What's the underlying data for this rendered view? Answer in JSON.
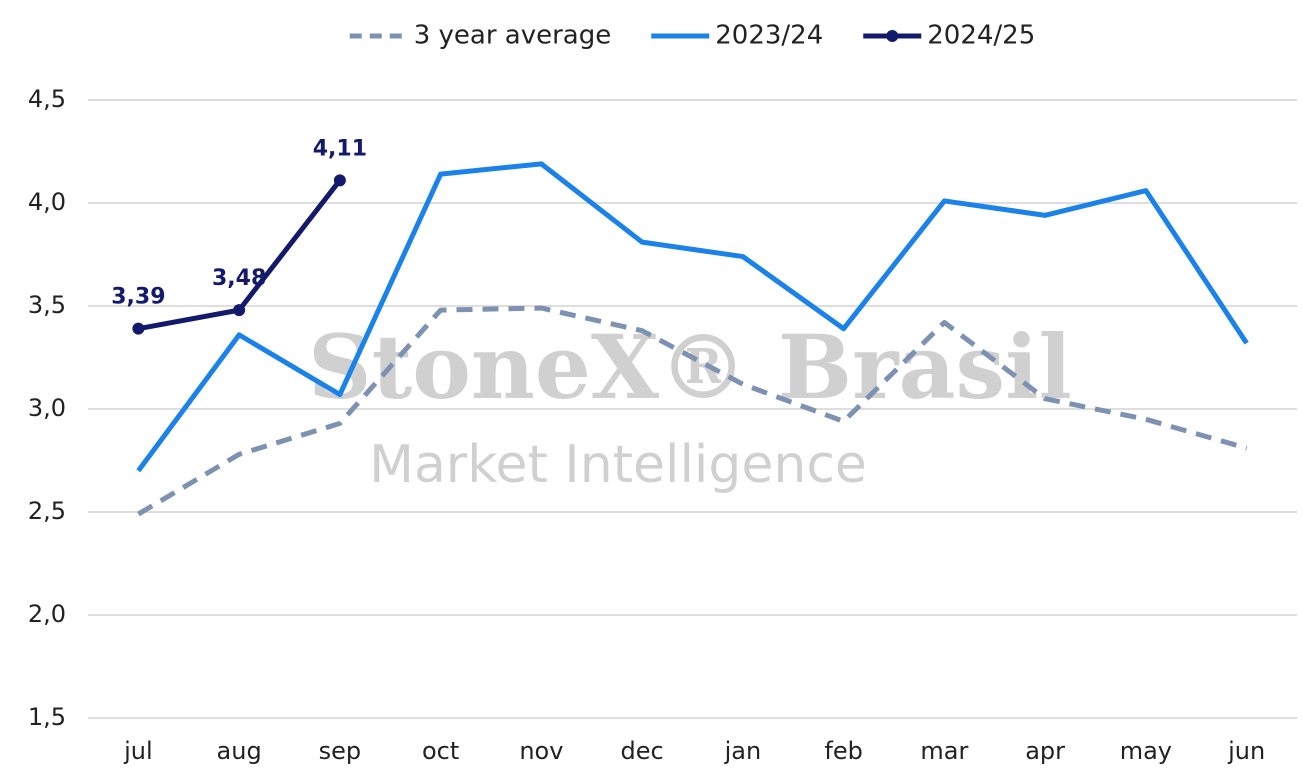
{
  "chart_data": {
    "type": "line",
    "watermark": [
      "StoneX® Brasil",
      "Market Intelligence"
    ],
    "categories": [
      "jul",
      "aug",
      "sep",
      "oct",
      "nov",
      "dec",
      "jan",
      "feb",
      "mar",
      "apr",
      "may",
      "jun"
    ],
    "series": [
      {
        "name": "3 year average",
        "color": "#7d91b3",
        "dashed": true,
        "markers": false,
        "values": [
          2.49,
          2.78,
          2.93,
          3.48,
          3.49,
          3.38,
          3.12,
          2.94,
          3.42,
          3.05,
          2.95,
          2.81
        ]
      },
      {
        "name": "2023/24",
        "color": "#1a82e8",
        "dashed": false,
        "markers": false,
        "values": [
          2.7,
          3.36,
          3.07,
          4.14,
          4.19,
          3.81,
          3.74,
          3.39,
          4.01,
          3.94,
          4.06,
          3.32
        ]
      },
      {
        "name": "2024/25",
        "color": "#141a6b",
        "dashed": false,
        "markers": true,
        "values": [
          3.39,
          3.48,
          4.11,
          null,
          null,
          null,
          null,
          null,
          null,
          null,
          null,
          null
        ],
        "value_labels": [
          "3,39",
          "3,48",
          "4,11",
          null,
          null,
          null,
          null,
          null,
          null,
          null,
          null,
          null
        ]
      }
    ],
    "ylim": [
      1.5,
      4.5
    ],
    "yticks": [
      {
        "value": 1.5,
        "label": "1,5"
      },
      {
        "value": 2.0,
        "label": "2,0"
      },
      {
        "value": 2.5,
        "label": "2,5"
      },
      {
        "value": 3.0,
        "label": "3,0"
      },
      {
        "value": 3.5,
        "label": "3,5"
      },
      {
        "value": 4.0,
        "label": "4,0"
      },
      {
        "value": 4.5,
        "label": "4,5"
      }
    ],
    "grid": true,
    "legend": "top"
  }
}
